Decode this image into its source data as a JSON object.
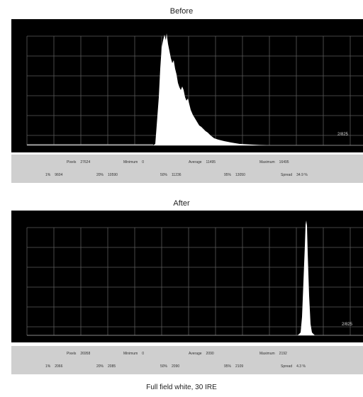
{
  "before": {
    "title": "Before",
    "scale_label": "2/825",
    "stats_row1": [
      {
        "k": "Pixels",
        "v": "27624"
      },
      {
        "k": "Minimum",
        "v": "0"
      },
      {
        "k": "Average",
        "v": "11495"
      },
      {
        "k": "Maximum",
        "v": "16495"
      }
    ],
    "stats_row2": [
      {
        "k": "1%",
        "v": "9604"
      },
      {
        "k": "20%",
        "v": "10590"
      },
      {
        "k": "50%",
        "v": "11236"
      },
      {
        "k": "95%",
        "v": "13050"
      },
      {
        "k": "Spread",
        "v": "34.9 %"
      }
    ]
  },
  "after": {
    "title": "After",
    "scale_label": "2/825",
    "stats_row1": [
      {
        "k": "Pixels",
        "v": "26958"
      },
      {
        "k": "Minimum",
        "v": "0"
      },
      {
        "k": "Average",
        "v": "2090"
      },
      {
        "k": "Maximum",
        "v": "2192"
      }
    ],
    "stats_row2": [
      {
        "k": "1%",
        "v": "2066"
      },
      {
        "k": "20%",
        "v": "2085"
      },
      {
        "k": "50%",
        "v": "2090"
      },
      {
        "k": "95%",
        "v": "2109"
      },
      {
        "k": "Spread",
        "v": "4.3 %"
      }
    ]
  },
  "caption": "Full field white, 30 IRE"
}
